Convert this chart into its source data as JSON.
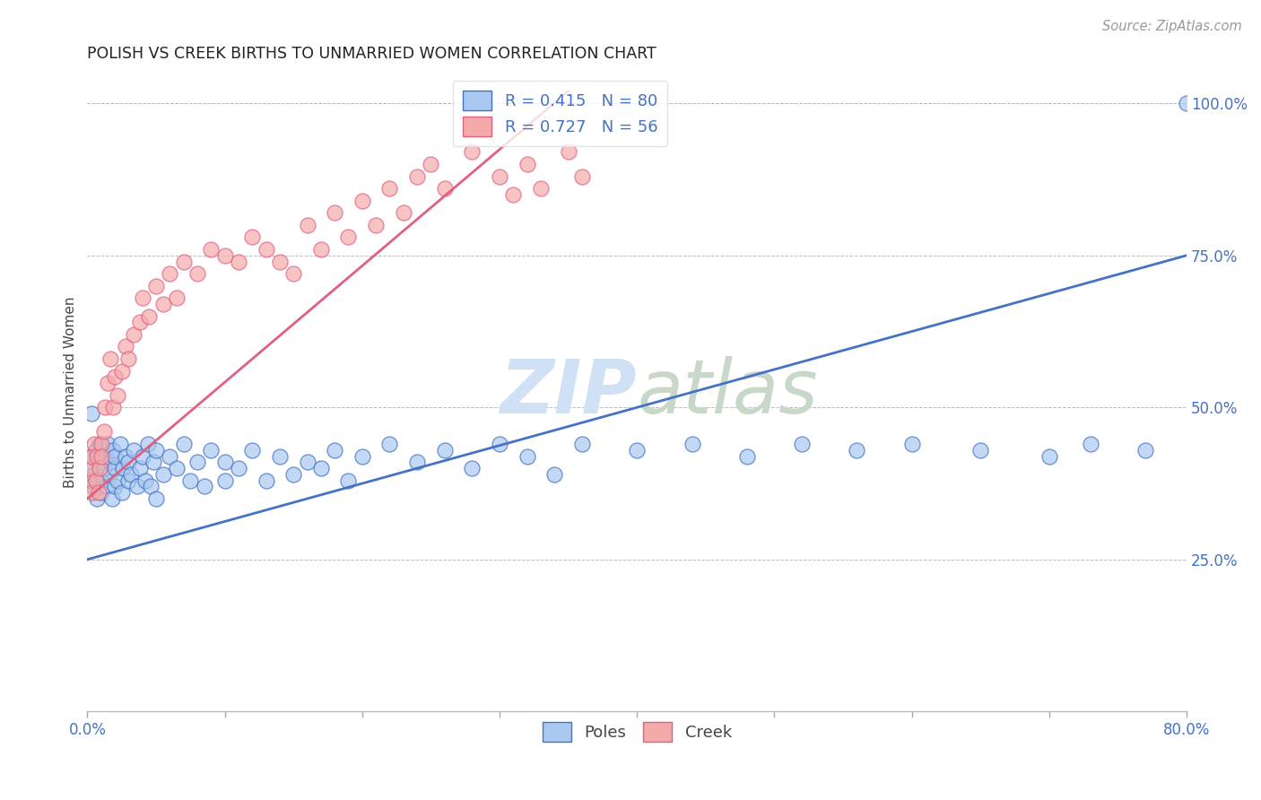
{
  "title": "POLISH VS CREEK BIRTHS TO UNMARRIED WOMEN CORRELATION CHART",
  "source": "Source: ZipAtlas.com",
  "ylabel": "Births to Unmarried Women",
  "xlim": [
    0.0,
    0.8
  ],
  "ylim": [
    0.0,
    1.05
  ],
  "poles_R": 0.415,
  "poles_N": 80,
  "creek_R": 0.727,
  "creek_N": 56,
  "poles_color": "#A8C8F0",
  "creek_color": "#F5AAAA",
  "trend_poles_color": "#4472C4",
  "trend_creek_color": "#E06080",
  "watermark_color": "#D0E0F5",
  "background_color": "#FFFFFF",
  "poles_trend_x0": 0.0,
  "poles_trend_y0": 0.25,
  "poles_trend_x1": 0.8,
  "poles_trend_y1": 0.75,
  "creek_trend_x0": 0.0,
  "creek_trend_y0": 0.35,
  "creek_trend_x1": 0.35,
  "creek_trend_y1": 1.02,
  "poles_x": [
    0.001,
    0.002,
    0.003,
    0.004,
    0.005,
    0.006,
    0.007,
    0.008,
    0.009,
    0.01,
    0.01,
    0.012,
    0.013,
    0.014,
    0.015,
    0.016,
    0.017,
    0.018,
    0.019,
    0.02,
    0.02,
    0.02,
    0.022,
    0.024,
    0.025,
    0.026,
    0.028,
    0.03,
    0.03,
    0.032,
    0.034,
    0.036,
    0.038,
    0.04,
    0.042,
    0.044,
    0.046,
    0.048,
    0.05,
    0.05,
    0.055,
    0.06,
    0.065,
    0.07,
    0.075,
    0.08,
    0.085,
    0.09,
    0.1,
    0.1,
    0.11,
    0.12,
    0.13,
    0.14,
    0.15,
    0.16,
    0.17,
    0.18,
    0.19,
    0.2,
    0.22,
    0.24,
    0.26,
    0.28,
    0.3,
    0.32,
    0.34,
    0.36,
    0.4,
    0.44,
    0.48,
    0.52,
    0.56,
    0.6,
    0.65,
    0.7,
    0.73,
    0.77,
    0.003,
    0.8
  ],
  "poles_y": [
    0.38,
    0.4,
    0.42,
    0.37,
    0.39,
    0.43,
    0.35,
    0.41,
    0.44,
    0.38,
    0.36,
    0.4,
    0.42,
    0.37,
    0.44,
    0.39,
    0.41,
    0.35,
    0.43,
    0.37,
    0.4,
    0.42,
    0.38,
    0.44,
    0.36,
    0.4,
    0.42,
    0.38,
    0.41,
    0.39,
    0.43,
    0.37,
    0.4,
    0.42,
    0.38,
    0.44,
    0.37,
    0.41,
    0.35,
    0.43,
    0.39,
    0.42,
    0.4,
    0.44,
    0.38,
    0.41,
    0.37,
    0.43,
    0.38,
    0.41,
    0.4,
    0.43,
    0.38,
    0.42,
    0.39,
    0.41,
    0.4,
    0.43,
    0.38,
    0.42,
    0.44,
    0.41,
    0.43,
    0.4,
    0.44,
    0.42,
    0.39,
    0.44,
    0.43,
    0.44,
    0.42,
    0.44,
    0.43,
    0.44,
    0.43,
    0.42,
    0.44,
    0.43,
    0.49,
    1.0
  ],
  "creek_x": [
    0.001,
    0.002,
    0.003,
    0.004,
    0.005,
    0.006,
    0.007,
    0.008,
    0.009,
    0.01,
    0.01,
    0.012,
    0.013,
    0.015,
    0.017,
    0.019,
    0.02,
    0.022,
    0.025,
    0.028,
    0.03,
    0.034,
    0.038,
    0.04,
    0.045,
    0.05,
    0.055,
    0.06,
    0.065,
    0.07,
    0.08,
    0.09,
    0.1,
    0.11,
    0.12,
    0.13,
    0.14,
    0.15,
    0.16,
    0.17,
    0.18,
    0.19,
    0.2,
    0.21,
    0.22,
    0.23,
    0.24,
    0.25,
    0.26,
    0.28,
    0.3,
    0.31,
    0.32,
    0.33,
    0.35,
    0.36
  ],
  "creek_y": [
    0.38,
    0.4,
    0.42,
    0.36,
    0.44,
    0.38,
    0.42,
    0.36,
    0.4,
    0.44,
    0.42,
    0.46,
    0.5,
    0.54,
    0.58,
    0.5,
    0.55,
    0.52,
    0.56,
    0.6,
    0.58,
    0.62,
    0.64,
    0.68,
    0.65,
    0.7,
    0.67,
    0.72,
    0.68,
    0.74,
    0.72,
    0.76,
    0.75,
    0.74,
    0.78,
    0.76,
    0.74,
    0.72,
    0.8,
    0.76,
    0.82,
    0.78,
    0.84,
    0.8,
    0.86,
    0.82,
    0.88,
    0.9,
    0.86,
    0.92,
    0.88,
    0.85,
    0.9,
    0.86,
    0.92,
    0.88
  ]
}
